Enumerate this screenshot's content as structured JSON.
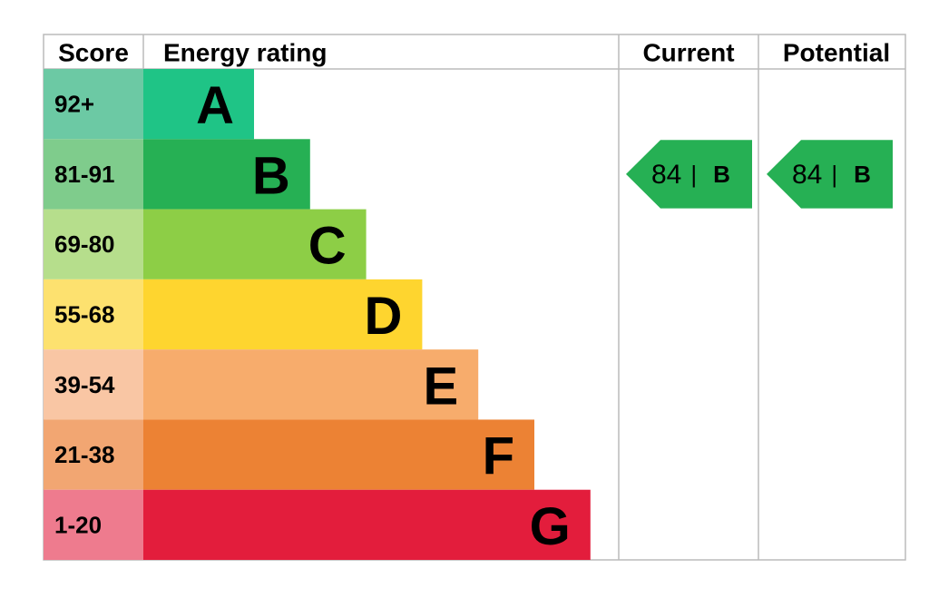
{
  "header": {
    "score": "Score",
    "rating": "Energy rating",
    "current": "Current",
    "potential": "Potential"
  },
  "bands": [
    {
      "score": "92+",
      "letter": "A",
      "color": "#1fc486",
      "score_color": "#6cc9a4"
    },
    {
      "score": "81-91",
      "letter": "B",
      "color": "#26b054",
      "score_color": "#7fcc8c"
    },
    {
      "score": "69-80",
      "letter": "C",
      "color": "#8dce46",
      "score_color": "#b6de8c"
    },
    {
      "score": "55-68",
      "letter": "D",
      "color": "#fed52f",
      "score_color": "#fde16f"
    },
    {
      "score": "39-54",
      "letter": "E",
      "color": "#f7ac6c",
      "score_color": "#f9c6a4"
    },
    {
      "score": "21-38",
      "letter": "F",
      "color": "#ec8234",
      "score_color": "#f2a672"
    },
    {
      "score": "1-20",
      "letter": "G",
      "color": "#e31d3c",
      "score_color": "#ee7b8e"
    }
  ],
  "current": {
    "value": 84,
    "separator": "|",
    "letter": "B",
    "color": "#26b054"
  },
  "potential": {
    "value": 84,
    "separator": "|",
    "letter": "B",
    "color": "#26b054"
  }
}
